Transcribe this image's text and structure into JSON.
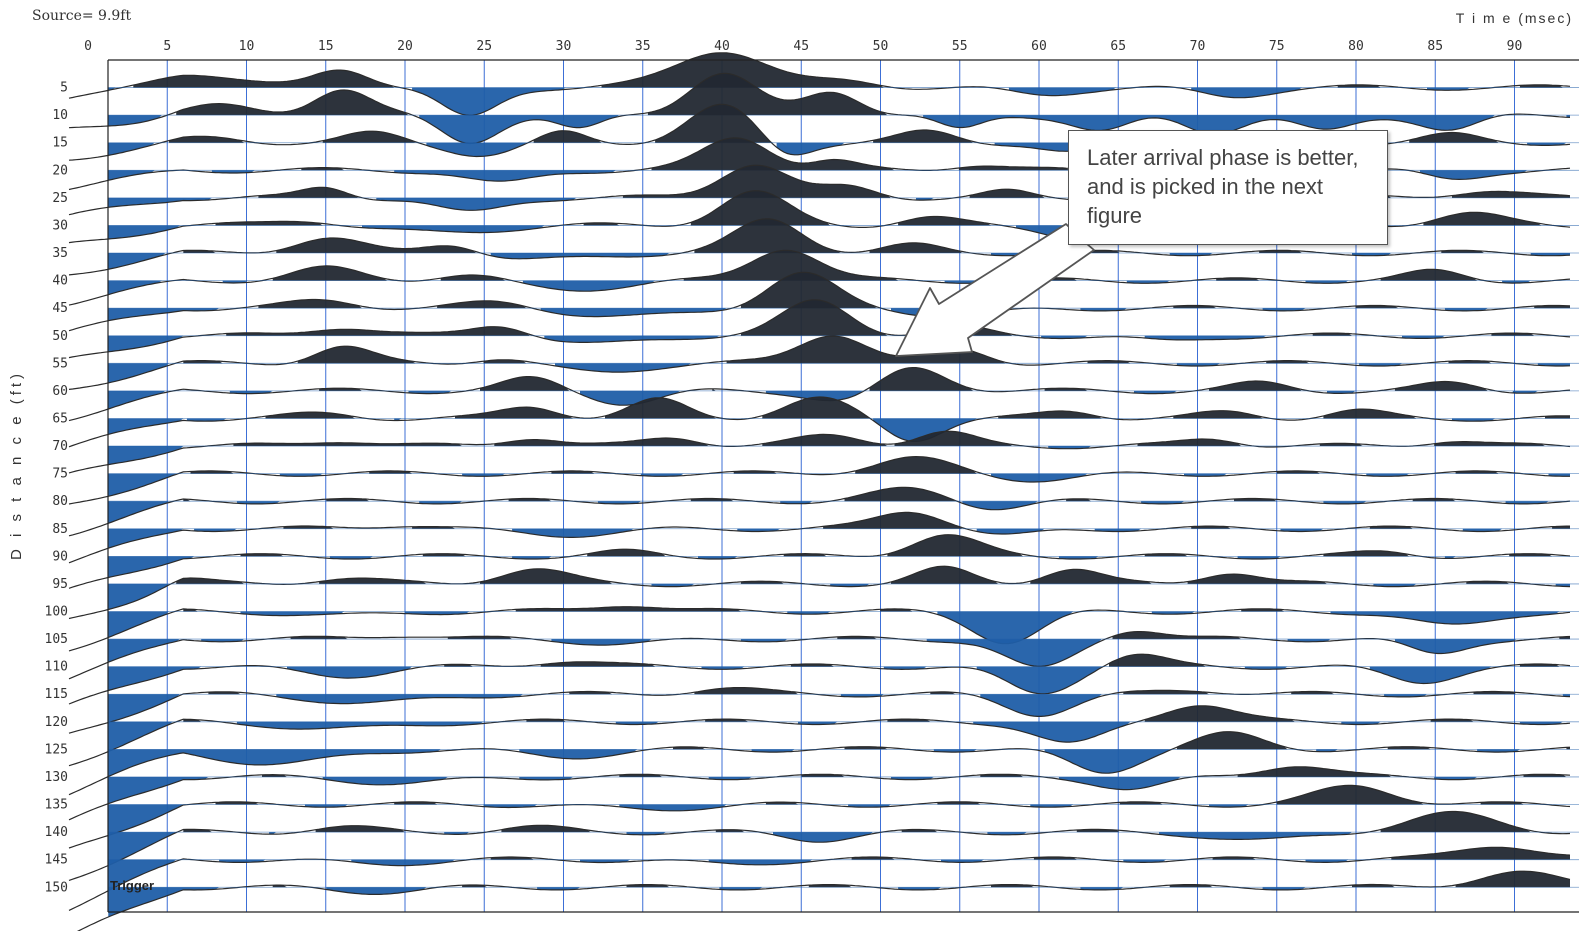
{
  "header": {
    "source": "Source= 9.9ft",
    "time_label": "T i m e (msec)",
    "distance_label": "D i s t a n c e (ft)"
  },
  "annotation": {
    "text": "Later arrival phase is better, and is picked in the next figure"
  },
  "trigger_label": "Trigger",
  "colors": {
    "positive_fill": "#1f5ea8",
    "negative_fill": "#222831",
    "trace_line": "#2b2b2b",
    "grid": "#3c6fd6"
  },
  "chart_data": {
    "type": "seismic wiggle traces (variable area)",
    "x_axis": {
      "label": "Time (msec)",
      "ticks": [
        0,
        5,
        10,
        15,
        20,
        25,
        30,
        35,
        40,
        45,
        50,
        55,
        60,
        65,
        70,
        75,
        80,
        85,
        90
      ],
      "range": [
        0,
        93
      ]
    },
    "y_axis": {
      "label": "Distance (ft)",
      "ticks": [
        5,
        10,
        15,
        20,
        25,
        30,
        35,
        40,
        45,
        50,
        55,
        60,
        65,
        70,
        75,
        80,
        85,
        90,
        95,
        100,
        105,
        110,
        115,
        120,
        125,
        130,
        135,
        140,
        145,
        150
      ],
      "range": [
        150,
        0
      ],
      "inverted": true
    },
    "grid": true,
    "source_ft": 9.9,
    "traces": [
      {
        "distance": 5,
        "events": [
          [
            6,
            1.0,
            4
          ],
          [
            16,
            1.3,
            2.5
          ],
          [
            24,
            -2.0,
            2.5
          ],
          [
            40,
            2.5,
            4
          ],
          [
            48,
            0.4,
            3
          ],
          [
            60,
            -0.5,
            3
          ],
          [
            72,
            -0.6,
            3
          ]
        ]
      },
      {
        "distance": 10,
        "events": [
          [
            8,
            0.6,
            3
          ],
          [
            16,
            1.8,
            2.5
          ],
          [
            24,
            -1.8,
            2.5
          ],
          [
            31,
            -1.0,
            2
          ],
          [
            40,
            2.8,
            3
          ],
          [
            47,
            1.6,
            2.5
          ],
          [
            55,
            -1.0,
            2
          ],
          [
            64,
            -1.1,
            2.5
          ],
          [
            71,
            -1.1,
            2.5
          ],
          [
            78,
            -1.1,
            2.5
          ],
          [
            86,
            -1.0,
            2.5
          ]
        ]
      },
      {
        "distance": 15,
        "events": [
          [
            8,
            0.3,
            3
          ],
          [
            18,
            0.6,
            2.5
          ],
          [
            25,
            -0.8,
            3
          ],
          [
            30,
            0.7,
            2
          ],
          [
            40,
            2.4,
            3
          ],
          [
            44,
            -1.0,
            2
          ],
          [
            53,
            0.7,
            2.5
          ],
          [
            62,
            -0.7,
            2.5
          ],
          [
            86,
            0.5,
            2.5
          ]
        ]
      },
      {
        "distance": 20,
        "events": [
          [
            26,
            -0.9,
            3
          ],
          [
            41,
            2.2,
            3
          ],
          [
            47,
            0.6,
            2
          ],
          [
            56,
            0.4,
            2.5
          ],
          [
            86,
            -0.6,
            2.5
          ]
        ]
      },
      {
        "distance": 25,
        "events": [
          [
            15,
            0.7,
            2
          ],
          [
            24,
            -1.0,
            3
          ],
          [
            42,
            2.3,
            3
          ],
          [
            48,
            0.7,
            2.5
          ],
          [
            58,
            0.4,
            2
          ],
          [
            88,
            0.5,
            3
          ]
        ]
      },
      {
        "distance": 30,
        "events": [
          [
            14,
            0.4,
            3
          ],
          [
            22,
            -0.5,
            5
          ],
          [
            42,
            2.2,
            3
          ],
          [
            53,
            0.5,
            2.5
          ],
          [
            63,
            -0.9,
            3
          ],
          [
            87,
            0.8,
            3
          ]
        ]
      },
      {
        "distance": 35,
        "events": [
          [
            15,
            1.0,
            3
          ],
          [
            23,
            0.8,
            2.5
          ],
          [
            28,
            -0.5,
            5
          ],
          [
            43,
            2.2,
            3
          ],
          [
            52,
            0.5,
            2.5
          ]
        ]
      },
      {
        "distance": 40,
        "events": [
          [
            15,
            0.8,
            3
          ],
          [
            24,
            0.5,
            3
          ],
          [
            30,
            -0.6,
            5
          ],
          [
            44,
            2.2,
            3
          ],
          [
            85,
            0.6,
            2.5
          ]
        ]
      },
      {
        "distance": 45,
        "events": [
          [
            15,
            0.5,
            3
          ],
          [
            26,
            0.4,
            3
          ],
          [
            34,
            -0.6,
            5
          ],
          [
            45,
            2.3,
            3
          ],
          [
            55,
            -0.5,
            4
          ]
        ]
      },
      {
        "distance": 50,
        "events": [
          [
            16,
            0.6,
            3
          ],
          [
            26,
            0.8,
            2.5
          ],
          [
            32,
            -0.6,
            4
          ],
          [
            46,
            2.3,
            3
          ],
          [
            55,
            0.5,
            2.5
          ],
          [
            68,
            -0.4,
            3
          ]
        ]
      },
      {
        "distance": 55,
        "events": [
          [
            16,
            1.1,
            2.5
          ],
          [
            26,
            0.4,
            2.5
          ],
          [
            32,
            -0.6,
            4
          ],
          [
            47,
            2.0,
            3
          ],
          [
            55,
            0.9,
            2.5
          ]
        ]
      },
      {
        "distance": 60,
        "events": [
          [
            28,
            0.8,
            2.5
          ],
          [
            34,
            -0.8,
            3
          ],
          [
            48,
            -0.8,
            3
          ],
          [
            52,
            1.6,
            3
          ],
          [
            74,
            0.5,
            2.5
          ],
          [
            86,
            0.5,
            2.5
          ]
        ]
      },
      {
        "distance": 65,
        "events": [
          [
            15,
            0.3,
            3
          ],
          [
            28,
            0.8,
            2.5
          ],
          [
            36,
            1.2,
            2.5
          ],
          [
            46,
            1.3,
            3
          ],
          [
            52,
            -1.4,
            2.5
          ],
          [
            62,
            0.5,
            2.5
          ],
          [
            72,
            0.4,
            2.5
          ],
          [
            80,
            0.5,
            2.5
          ]
        ]
      },
      {
        "distance": 70,
        "events": [
          [
            16,
            0.4,
            3
          ],
          [
            28,
            0.6,
            2.5
          ],
          [
            37,
            0.6,
            2.5
          ],
          [
            47,
            0.7,
            3
          ],
          [
            54,
            0.9,
            2.5
          ],
          [
            71,
            0.5,
            2.5
          ],
          [
            86,
            0.4,
            2.5
          ]
        ]
      },
      {
        "distance": 75,
        "events": [
          [
            52,
            1.0,
            3.5
          ],
          [
            60,
            -0.4,
            4
          ]
        ]
      },
      {
        "distance": 80,
        "events": [
          [
            52,
            0.8,
            3.5
          ],
          [
            57,
            -0.5,
            3
          ]
        ]
      },
      {
        "distance": 85,
        "events": [
          [
            20,
            0.3,
            3
          ],
          [
            30,
            -0.4,
            5
          ],
          [
            52,
            1.2,
            3
          ],
          [
            58,
            -0.5,
            3
          ]
        ]
      },
      {
        "distance": 90,
        "events": [
          [
            34,
            0.3,
            2.5
          ],
          [
            54,
            1.4,
            3
          ],
          [
            82,
            0.3,
            2.5
          ]
        ]
      },
      {
        "distance": 95,
        "events": [
          [
            6,
            0.3,
            2
          ],
          [
            16,
            0.4,
            3
          ],
          [
            28,
            1.0,
            3
          ],
          [
            54,
            1.0,
            2.5
          ],
          [
            62,
            1.0,
            2.5
          ],
          [
            72,
            0.8,
            2.5
          ]
        ]
      },
      {
        "distance": 100,
        "events": [
          [
            16,
            -0.3,
            4
          ],
          [
            34,
            0.5,
            3
          ],
          [
            58,
            -2.0,
            3
          ],
          [
            86,
            -1.0,
            3.5
          ]
        ]
      },
      {
        "distance": 105,
        "events": [
          [
            20,
            0.3,
            3
          ],
          [
            34,
            -0.3,
            4
          ],
          [
            60,
            -2.0,
            3
          ],
          [
            66,
            0.7,
            2.5
          ],
          [
            85,
            -1.0,
            2.5
          ]
        ]
      },
      {
        "distance": 110,
        "events": [
          [
            16,
            -0.6,
            4
          ],
          [
            30,
            0.4,
            3
          ],
          [
            60,
            -1.8,
            3
          ],
          [
            66,
            0.8,
            2.5
          ],
          [
            84,
            -1.0,
            3
          ]
        ]
      },
      {
        "distance": 115,
        "events": [
          [
            18,
            -0.6,
            5
          ],
          [
            40,
            0.4,
            3
          ],
          [
            60,
            -1.3,
            3
          ],
          [
            70,
            0.3,
            3
          ]
        ]
      },
      {
        "distance": 120,
        "events": [
          [
            16,
            -0.5,
            5
          ],
          [
            62,
            -1.5,
            3
          ],
          [
            70,
            1.2,
            3
          ]
        ]
      },
      {
        "distance": 125,
        "events": [
          [
            12,
            -1.0,
            5
          ],
          [
            30,
            -0.5,
            4
          ],
          [
            64,
            -1.5,
            3
          ],
          [
            72,
            1.0,
            3
          ]
        ]
      },
      {
        "distance": 130,
        "events": [
          [
            20,
            -0.4,
            5
          ],
          [
            66,
            -0.8,
            3
          ],
          [
            76,
            0.8,
            3
          ]
        ]
      },
      {
        "distance": 135,
        "events": [
          [
            35,
            -0.3,
            5
          ],
          [
            80,
            1.2,
            3.5
          ]
        ]
      },
      {
        "distance": 140,
        "events": [
          [
            16,
            0.3,
            3
          ],
          [
            28,
            0.3,
            3
          ],
          [
            46,
            -0.5,
            3
          ],
          [
            74,
            -0.6,
            4
          ],
          [
            86,
            1.2,
            4
          ]
        ]
      },
      {
        "distance": 145,
        "events": [
          [
            18,
            -0.3,
            4
          ],
          [
            40,
            -0.3,
            4
          ],
          [
            89,
            1.0,
            3.5
          ]
        ]
      },
      {
        "distance": 150,
        "events": [
          [
            18,
            -0.3,
            4
          ],
          [
            90,
            1.0,
            3.5
          ]
        ]
      }
    ]
  }
}
